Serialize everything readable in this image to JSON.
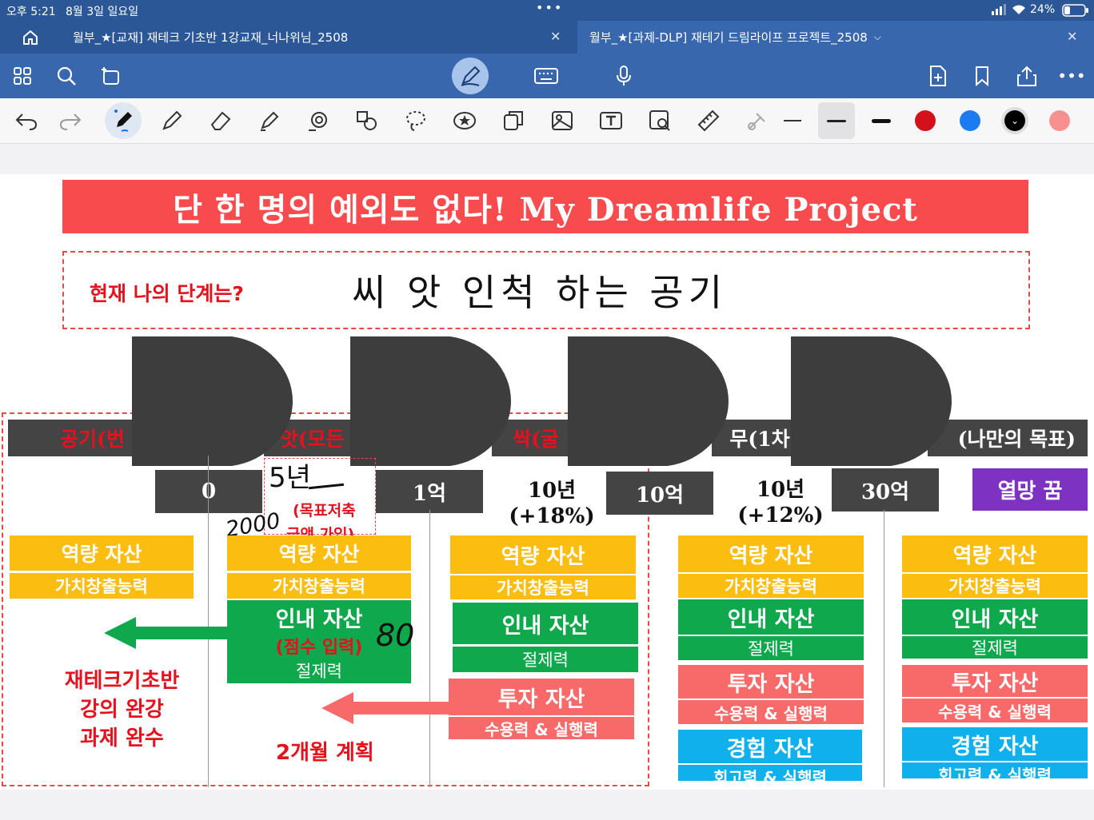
{
  "status": {
    "time": "오후 5:21",
    "date": "8월 3일 일요일",
    "battery": "24%"
  },
  "tabs": [
    {
      "title": "월부_★[교재] 재테크 기초반 1강교재_너나위님_2508"
    },
    {
      "title": "월부_★[과제-DLP] 재테기 드림라이프 프로젝트_2508"
    }
  ],
  "doc": {
    "banner": "단 한 명의 예외도 없다! My Dreamlife Project",
    "question": "현재 나의 단계는?",
    "answer": "씨 앗 인척 하는 공기",
    "stages": [
      "공기(번",
      "앗(모든",
      "싹(굴",
      "무(1차",
      "(나만의 목표)"
    ],
    "amounts": [
      "0",
      "1억",
      "10억",
      "30억",
      "열망 꿈"
    ],
    "periods": [
      {
        "years": "10년",
        "rate": "(+18%)"
      },
      {
        "years": "10년",
        "rate": "(+12%)"
      }
    ],
    "hand_5y": "5년",
    "hand_2000": "2000",
    "hand_80": "80",
    "goal_note": "(목표저축",
    "goal_note2": "금액 가입)",
    "cap_title": "역량 자산",
    "cap_sub": "가치창출능력",
    "end_title": "인내 자산",
    "end_sub": "절제력",
    "end_note": "(점수 입력)",
    "inv_title": "투자 자산",
    "inv_sub": "수용력 & 실행력",
    "exp_title": "경험 자산",
    "exp_sub": "회고력 & 실행력",
    "left_note": [
      "재테크기초반",
      "강의 완강",
      "과제 완수"
    ],
    "plan": "2개월 계획"
  }
}
